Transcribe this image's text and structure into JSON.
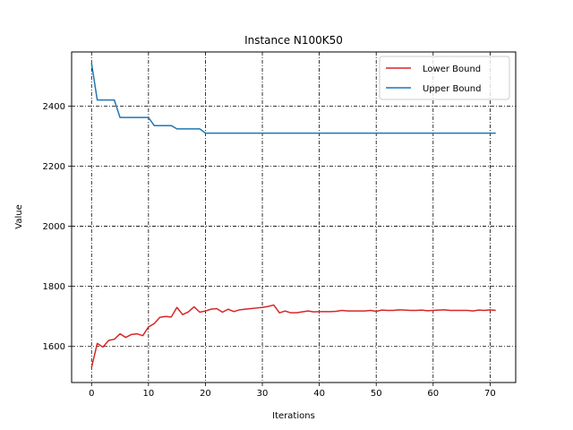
{
  "chart_data": {
    "type": "line",
    "title": "Instance N100K50",
    "xlabel": "Iterations",
    "ylabel": "Value",
    "xlim": [
      -3.5,
      74.5
    ],
    "ylim": [
      1480,
      2580
    ],
    "xticks": [
      0,
      10,
      20,
      30,
      40,
      50,
      60,
      70
    ],
    "yticks": [
      1600,
      1800,
      2000,
      2200,
      2400
    ],
    "grid": true,
    "legend_position": "top-right",
    "series": [
      {
        "name": "Lower Bound",
        "color": "#d62728",
        "x": [
          0,
          1,
          2,
          3,
          4,
          5,
          6,
          7,
          8,
          9,
          10,
          11,
          12,
          13,
          14,
          15,
          16,
          17,
          18,
          19,
          20,
          21,
          22,
          23,
          24,
          25,
          26,
          27,
          28,
          29,
          30,
          31,
          32,
          33,
          34,
          35,
          36,
          37,
          38,
          39,
          40,
          41,
          42,
          43,
          44,
          45,
          46,
          47,
          48,
          49,
          50,
          51,
          52,
          53,
          54,
          55,
          56,
          57,
          58,
          59,
          60,
          61,
          62,
          63,
          64,
          65,
          66,
          67,
          68,
          69,
          70,
          71
        ],
        "values": [
          1530,
          1610,
          1598,
          1620,
          1624,
          1642,
          1630,
          1640,
          1642,
          1636,
          1665,
          1676,
          1697,
          1700,
          1698,
          1730,
          1706,
          1715,
          1732,
          1714,
          1718,
          1724,
          1726,
          1714,
          1724,
          1716,
          1722,
          1724,
          1726,
          1728,
          1730,
          1733,
          1738,
          1712,
          1718,
          1712,
          1712,
          1715,
          1718,
          1715,
          1716,
          1716,
          1716,
          1717,
          1720,
          1718,
          1718,
          1718,
          1718,
          1720,
          1717,
          1721,
          1720,
          1720,
          1722,
          1721,
          1720,
          1720,
          1721,
          1719,
          1720,
          1721,
          1722,
          1720,
          1720,
          1720,
          1720,
          1718,
          1721,
          1720,
          1722,
          1720
        ]
      },
      {
        "name": "Upper Bound",
        "color": "#1f77b4",
        "x": [
          0,
          1,
          2,
          3,
          4,
          5,
          6,
          7,
          8,
          9,
          10,
          11,
          12,
          13,
          14,
          15,
          16,
          17,
          18,
          19,
          20,
          21,
          22,
          23,
          24,
          25,
          26,
          27,
          28,
          29,
          30,
          31,
          32,
          33,
          34,
          35,
          36,
          37,
          38,
          39,
          40,
          41,
          42,
          43,
          44,
          45,
          46,
          47,
          48,
          49,
          50,
          51,
          52,
          53,
          54,
          55,
          56,
          57,
          58,
          59,
          60,
          61,
          62,
          63,
          64,
          65,
          66,
          67,
          68,
          69,
          70,
          71
        ],
        "values": [
          2542,
          2420,
          2420,
          2420,
          2420,
          2362,
          2362,
          2362,
          2362,
          2362,
          2362,
          2335,
          2335,
          2335,
          2335,
          2324,
          2324,
          2324,
          2324,
          2324,
          2310,
          2310,
          2310,
          2310,
          2310,
          2310,
          2310,
          2310,
          2310,
          2310,
          2310,
          2310,
          2310,
          2310,
          2310,
          2310,
          2310,
          2310,
          2310,
          2310,
          2310,
          2310,
          2310,
          2310,
          2310,
          2310,
          2310,
          2310,
          2310,
          2310,
          2310,
          2310,
          2310,
          2310,
          2310,
          2310,
          2310,
          2310,
          2310,
          2310,
          2310,
          2310,
          2310,
          2310,
          2310,
          2310,
          2310,
          2310,
          2310,
          2310,
          2310,
          2310
        ]
      }
    ]
  }
}
